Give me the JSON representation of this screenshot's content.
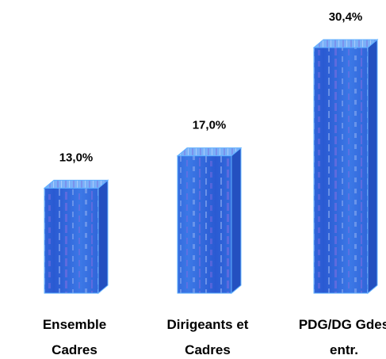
{
  "chart_data": {
    "type": "bar",
    "style": "3d-box",
    "title": "",
    "xlabel": "",
    "ylabel": "",
    "categories": [
      [
        "Ensemble",
        "Cadres"
      ],
      [
        "Dirigeants et",
        "Cadres"
      ],
      [
        "PDG/DG Gdes",
        "entr."
      ]
    ],
    "values": [
      13.0,
      17.0,
      30.4
    ],
    "value_labels": [
      "13,0%",
      "17,0%",
      "30,4%"
    ],
    "unit": "%",
    "ylim": [
      0,
      30.4
    ],
    "grid": false,
    "legend": "none",
    "colors": {
      "front": "#3c78e6",
      "front_dark": "#2a5ad2",
      "top": "#7ab0f8",
      "side": "#2450c0",
      "stripe_light": "#9ab6f2",
      "stripe_violet": "#7a6ce0",
      "edge": "#5fb0ff"
    }
  }
}
